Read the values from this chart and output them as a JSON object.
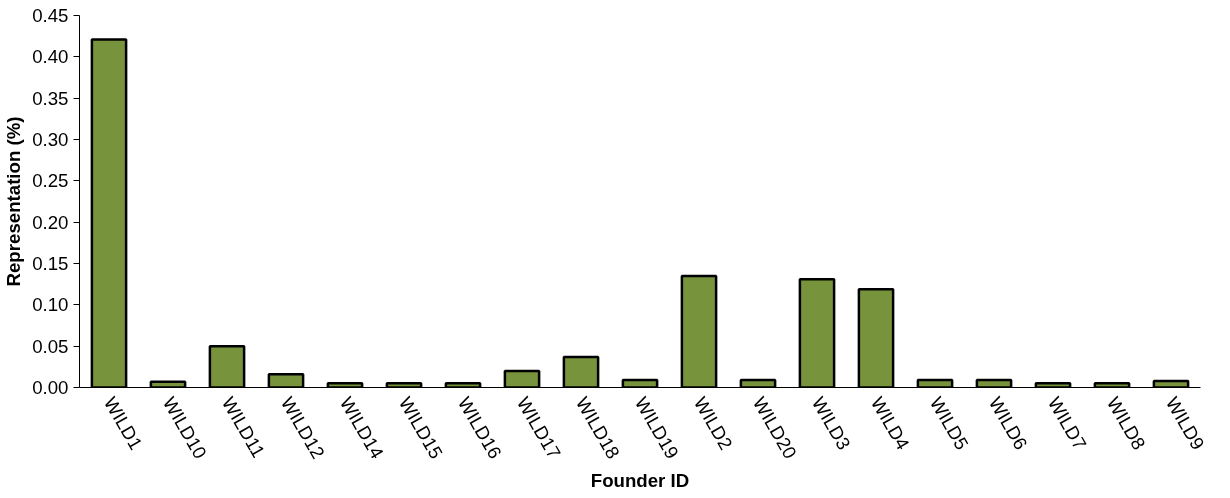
{
  "chart_data": {
    "type": "bar",
    "xlabel": "Founder ID",
    "ylabel": "Representation (%)",
    "categories": [
      "WILD1",
      "WILD10",
      "WILD11",
      "WILD12",
      "WILD14",
      "WILD15",
      "WILD16",
      "WILD17",
      "WILD18",
      "WILD19",
      "WILD2",
      "WILD20",
      "WILD3",
      "WILD4",
      "WILD5",
      "WILD6",
      "WILD7",
      "WILD8",
      "WILD9"
    ],
    "values": [
      0.421,
      0.007,
      0.05,
      0.016,
      0.005,
      0.005,
      0.005,
      0.02,
      0.037,
      0.009,
      0.135,
      0.009,
      0.131,
      0.119,
      0.009,
      0.009,
      0.005,
      0.005,
      0.008
    ],
    "color": "#77933c",
    "ylim": [
      0,
      0.45
    ],
    "yticks": [
      {
        "value": 0,
        "label": "0.00"
      },
      {
        "value": 0.05,
        "label": "0.05"
      },
      {
        "value": 0.1,
        "label": "0.10"
      },
      {
        "value": 0.15,
        "label": "0.15"
      },
      {
        "value": 0.2,
        "label": "0.20"
      },
      {
        "value": 0.25,
        "label": "0.25"
      },
      {
        "value": 0.3,
        "label": "0.30"
      },
      {
        "value": 0.35,
        "label": "0.35"
      },
      {
        "value": 0.4,
        "label": "0.40"
      },
      {
        "value": 0.45,
        "label": "0.45"
      }
    ],
    "grid": false
  }
}
